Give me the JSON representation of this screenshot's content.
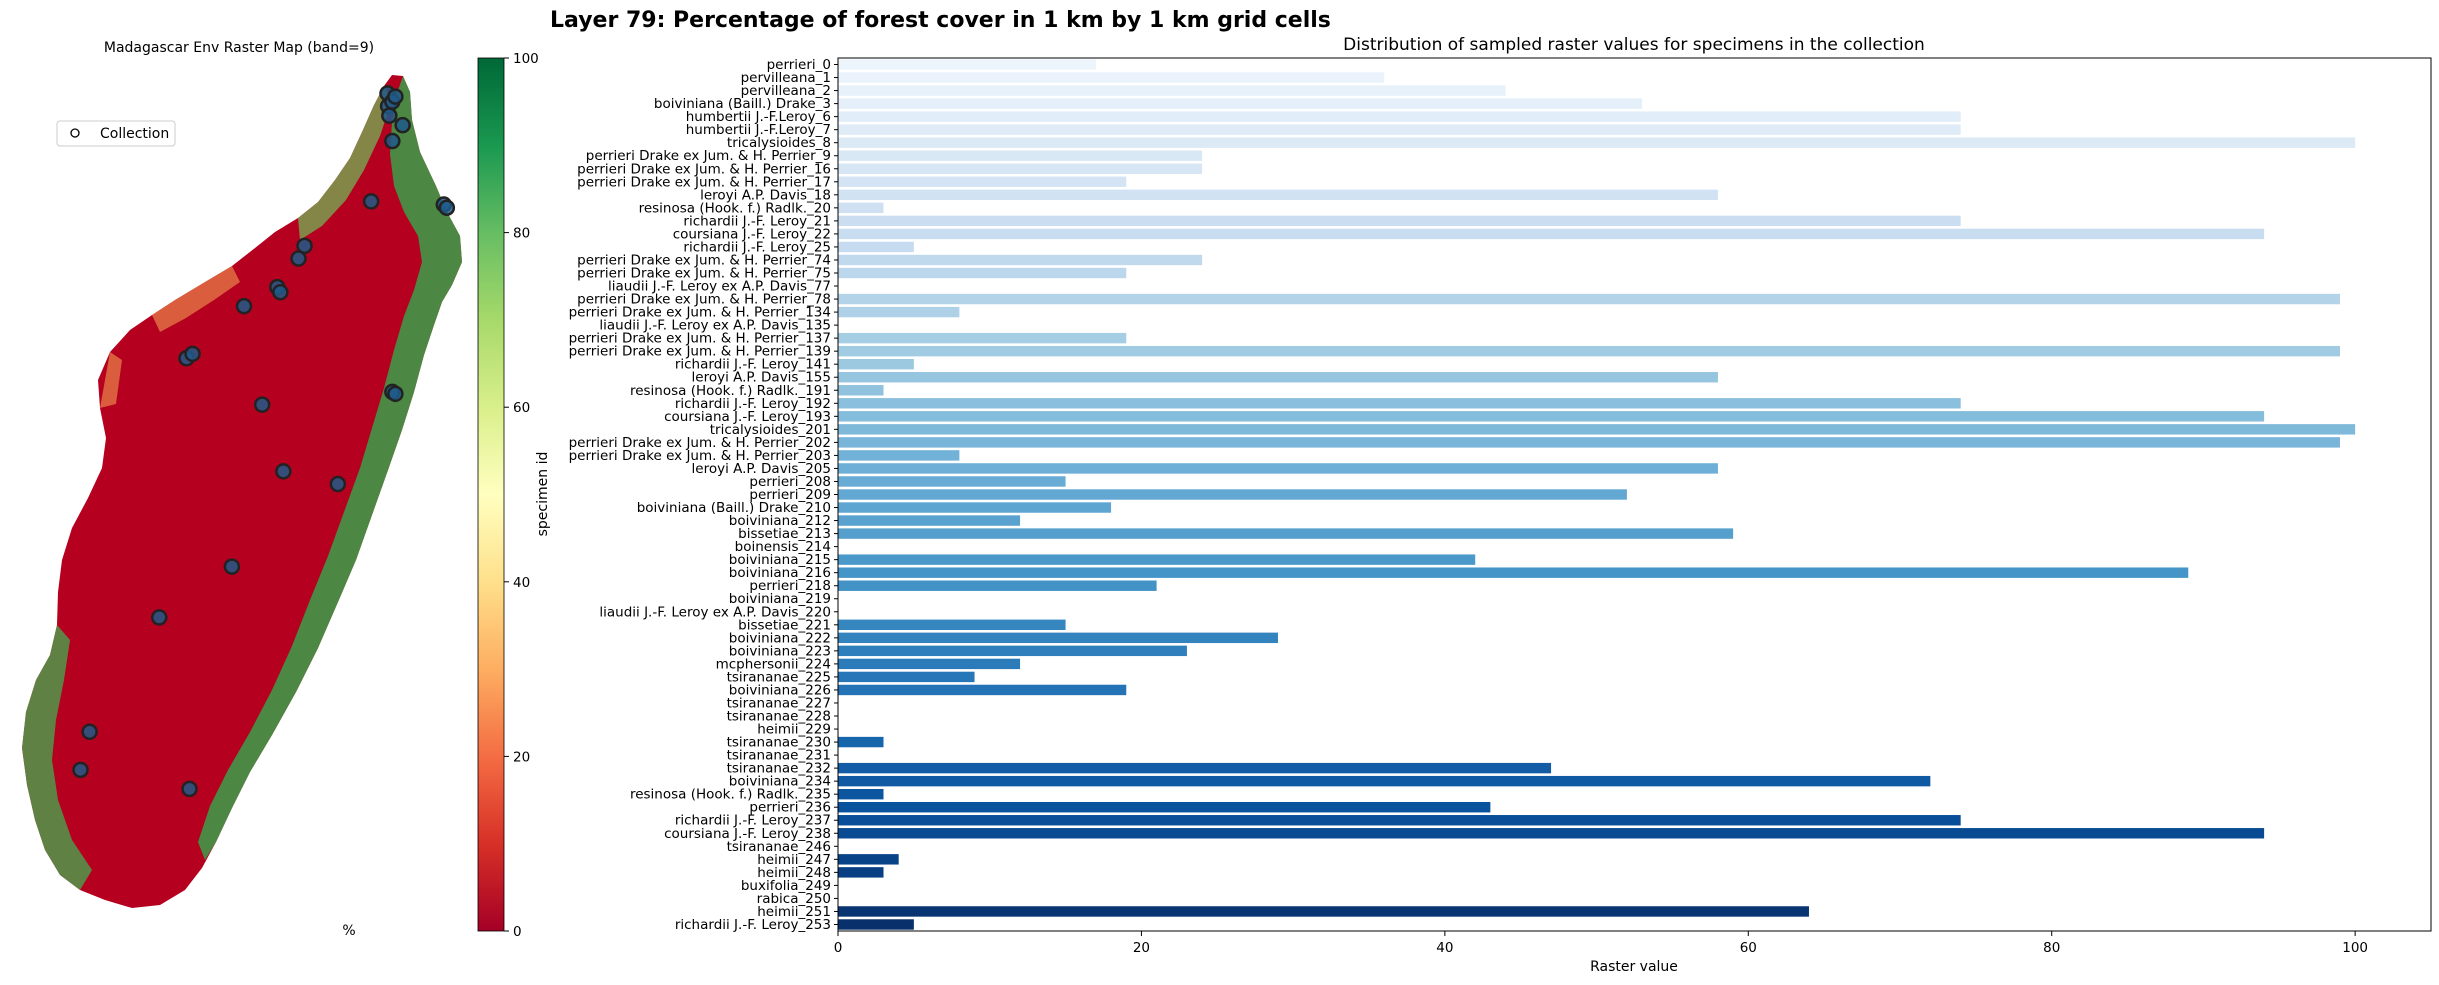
{
  "figure": {
    "suptitle": "Layer 79: Percentage of forest cover in 1 km by 1 km grid cells"
  },
  "map_panel": {
    "title": "Madagascar Env Raster Map (band=9)",
    "legend_label": "Collection",
    "colorbar_label": "%",
    "colorbar_ticks": [
      "0",
      "20",
      "40",
      "60",
      "80",
      "100"
    ],
    "colorbar_range": [
      0,
      100
    ],
    "colormap": "RdYlGn",
    "marker_color": "#1f5a8a",
    "marker_edge": "#222222",
    "map_points": [
      {
        "lon": 49.27,
        "lat": -12.35
      },
      {
        "lon": 49.28,
        "lat": -12.55
      },
      {
        "lon": 49.35,
        "lat": -12.48
      },
      {
        "lon": 49.4,
        "lat": -12.4
      },
      {
        "lon": 49.3,
        "lat": -12.7
      },
      {
        "lon": 49.52,
        "lat": -12.85
      },
      {
        "lon": 49.35,
        "lat": -13.1
      },
      {
        "lon": 50.2,
        "lat": -14.1
      },
      {
        "lon": 50.25,
        "lat": -14.15
      },
      {
        "lon": 49.0,
        "lat": -14.05
      },
      {
        "lon": 47.9,
        "lat": -14.75
      },
      {
        "lon": 47.8,
        "lat": -14.95
      },
      {
        "lon": 47.45,
        "lat": -15.4
      },
      {
        "lon": 47.5,
        "lat": -15.48
      },
      {
        "lon": 46.9,
        "lat": -15.7
      },
      {
        "lon": 45.95,
        "lat": -16.52
      },
      {
        "lon": 46.05,
        "lat": -16.45
      },
      {
        "lon": 47.2,
        "lat": -17.25
      },
      {
        "lon": 49.35,
        "lat": -17.05
      },
      {
        "lon": 49.4,
        "lat": -17.08
      },
      {
        "lon": 47.55,
        "lat": -18.3
      },
      {
        "lon": 48.45,
        "lat": -18.5
      },
      {
        "lon": 46.7,
        "lat": -19.8
      },
      {
        "lon": 45.5,
        "lat": -20.6
      },
      {
        "lon": 44.35,
        "lat": -22.4
      },
      {
        "lon": 44.2,
        "lat": -23.0
      },
      {
        "lon": 46.0,
        "lat": -23.3
      }
    ]
  },
  "chart_data": {
    "type": "bar",
    "orientation": "horizontal",
    "title": "Distribution of sampled raster values for specimens in the collection",
    "xlabel": "Raster value",
    "ylabel": "specimen id",
    "xlim": [
      0,
      105
    ],
    "xticks": [
      "0",
      "20",
      "40",
      "60",
      "80",
      "100"
    ],
    "colormap": "Blues",
    "categories": [
      "perrieri_0",
      "pervilleana_1",
      "pervilleana_2",
      "boiviniana (Baill.) Drake_3",
      "humbertii J.-F.Leroy_6",
      "humbertii J.-F.Leroy_7",
      "tricalysioides_8",
      "perrieri Drake ex Jum. & H. Perrier_9",
      "perrieri Drake ex Jum. & H. Perrier_16",
      "perrieri Drake ex Jum. & H. Perrier_17",
      "leroyi A.P. Davis_18",
      "resinosa (Hook. f.) Radlk._20",
      "richardii J.-F. Leroy_21",
      "coursiana J.-F. Leroy_22",
      "richardii J.-F. Leroy_25",
      "perrieri Drake ex Jum. & H. Perrier_74",
      "perrieri Drake ex Jum. & H. Perrier_75",
      "liaudii J.-F. Leroy ex A.P. Davis_77",
      "perrieri Drake ex Jum. & H. Perrier_78",
      "perrieri Drake ex Jum. & H. Perrier_134",
      "liaudii J.-F. Leroy ex A.P. Davis_135",
      "perrieri Drake ex Jum. & H. Perrier_137",
      "perrieri Drake ex Jum. & H. Perrier_139",
      "richardii J.-F. Leroy_141",
      "leroyi A.P. Davis_155",
      "resinosa (Hook. f.) Radlk._191",
      "richardii J.-F. Leroy_192",
      "coursiana J.-F. Leroy_193",
      "tricalysioides_201",
      "perrieri Drake ex Jum. & H. Perrier_202",
      "perrieri Drake ex Jum. & H. Perrier_203",
      "leroyi A.P. Davis_205",
      "perrieri_208",
      "perrieri_209",
      "boiviniana (Baill.) Drake_210",
      "boiviniana_212",
      "bissetiae_213",
      "boinensis_214",
      "boiviniana_215",
      "boiviniana_216",
      "perrieri_218",
      "boiviniana_219",
      "liaudii J.-F. Leroy ex A.P. Davis_220",
      "bissetiae_221",
      "boiviniana_222",
      "boiviniana_223",
      "mcphersonii_224",
      "tsirananae_225",
      "boiviniana_226",
      "tsirananae_227",
      "tsirananae_228",
      "heimii_229",
      "tsirananae_230",
      "tsirananae_231",
      "tsirananae_232",
      "boiviniana_234",
      "resinosa (Hook. f.) Radlk._235",
      "perrieri_236",
      "richardii J.-F. Leroy_237",
      "coursiana J.-F. Leroy_238",
      "tsirananae_246",
      "heimii_247",
      "heimii_248",
      "buxifolia_249",
      "rabica_250",
      "heimii_251",
      "richardii J.-F. Leroy_253"
    ],
    "values": [
      17,
      36,
      44,
      53,
      74,
      74,
      100,
      24,
      24,
      19,
      58,
      3,
      74,
      94,
      5,
      24,
      19,
      0,
      99,
      8,
      0,
      19,
      99,
      5,
      58,
      3,
      74,
      94,
      100,
      99,
      8,
      58,
      15,
      52,
      18,
      12,
      59,
      0,
      42,
      89,
      21,
      0,
      0,
      15,
      29,
      23,
      12,
      9,
      19,
      0,
      0,
      0,
      3,
      0,
      47,
      72,
      3,
      43,
      74,
      94,
      0,
      4,
      3,
      0,
      0,
      64,
      5
    ]
  }
}
